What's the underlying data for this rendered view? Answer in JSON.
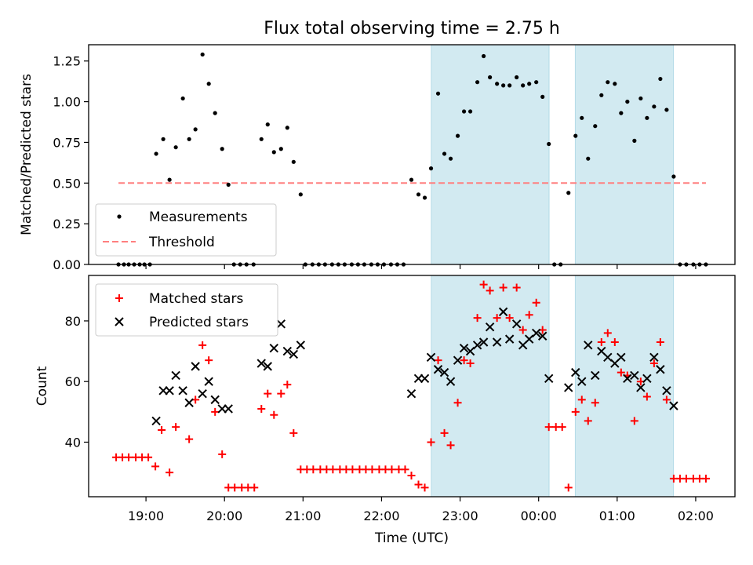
{
  "figure": {
    "title": "Flux total observing time = 2.75 h",
    "xlabel": "Time (UTC)"
  },
  "chart_data": [
    {
      "type": "scatter",
      "panel": "top",
      "ylabel": "Matched/Predicted stars",
      "xlim_hours": [
        18.27,
        26.5
      ],
      "ylim": [
        0,
        1.35
      ],
      "yticks": [
        "0.00",
        "0.25",
        "0.50",
        "0.75",
        "1.00",
        "1.25"
      ],
      "shaded_intervals": [
        [
          "22:38",
          "00:08"
        ],
        [
          "00:28",
          "01:43"
        ]
      ],
      "shade_color": "#add8e6",
      "series": [
        {
          "name": "Measurements",
          "marker": "dot",
          "color": "#000000",
          "points": [
            [
              18.65,
              0
            ],
            [
              18.72,
              0
            ],
            [
              18.78,
              0
            ],
            [
              18.85,
              0
            ],
            [
              18.92,
              0
            ],
            [
              18.98,
              0
            ],
            [
              19.05,
              0
            ],
            [
              19.13,
              0.68
            ],
            [
              19.22,
              0.77
            ],
            [
              19.3,
              0.52
            ],
            [
              19.38,
              0.72
            ],
            [
              19.47,
              1.02
            ],
            [
              19.55,
              0.77
            ],
            [
              19.63,
              0.83
            ],
            [
              19.72,
              1.29
            ],
            [
              19.8,
              1.11
            ],
            [
              19.88,
              0.93
            ],
            [
              19.97,
              0.71
            ],
            [
              20.05,
              0.49
            ],
            [
              20.12,
              0
            ],
            [
              20.2,
              0
            ],
            [
              20.28,
              0
            ],
            [
              20.37,
              0
            ],
            [
              20.47,
              0.77
            ],
            [
              20.55,
              0.86
            ],
            [
              20.63,
              0.69
            ],
            [
              20.72,
              0.71
            ],
            [
              20.8,
              0.84
            ],
            [
              20.88,
              0.63
            ],
            [
              20.97,
              0.43
            ],
            [
              21.03,
              0
            ],
            [
              21.12,
              0
            ],
            [
              21.2,
              0
            ],
            [
              21.28,
              0
            ],
            [
              21.37,
              0
            ],
            [
              21.45,
              0
            ],
            [
              21.53,
              0
            ],
            [
              21.62,
              0
            ],
            [
              21.7,
              0
            ],
            [
              21.78,
              0
            ],
            [
              21.87,
              0
            ],
            [
              21.95,
              0
            ],
            [
              22.03,
              0
            ],
            [
              22.12,
              0
            ],
            [
              22.2,
              0
            ],
            [
              22.28,
              0
            ],
            [
              22.38,
              0.52
            ],
            [
              22.47,
              0.43
            ],
            [
              22.55,
              0.41
            ],
            [
              22.63,
              0.59
            ],
            [
              22.72,
              1.05
            ],
            [
              22.8,
              0.68
            ],
            [
              22.88,
              0.65
            ],
            [
              22.97,
              0.79
            ],
            [
              23.05,
              0.94
            ],
            [
              23.13,
              0.94
            ],
            [
              23.22,
              1.12
            ],
            [
              23.3,
              1.28
            ],
            [
              23.38,
              1.15
            ],
            [
              23.47,
              1.11
            ],
            [
              23.55,
              1.1
            ],
            [
              23.63,
              1.1
            ],
            [
              23.72,
              1.15
            ],
            [
              23.8,
              1.1
            ],
            [
              23.88,
              1.11
            ],
            [
              23.97,
              1.12
            ],
            [
              24.05,
              1.03
            ],
            [
              24.13,
              0.74
            ],
            [
              24.2,
              0
            ],
            [
              24.28,
              0
            ],
            [
              24.38,
              0.44
            ],
            [
              24.47,
              0.79
            ],
            [
              24.55,
              0.9
            ],
            [
              24.63,
              0.65
            ],
            [
              24.72,
              0.85
            ],
            [
              24.8,
              1.04
            ],
            [
              24.88,
              1.12
            ],
            [
              24.97,
              1.11
            ],
            [
              25.05,
              0.93
            ],
            [
              25.13,
              1.0
            ],
            [
              25.22,
              0.76
            ],
            [
              25.3,
              1.02
            ],
            [
              25.38,
              0.9
            ],
            [
              25.47,
              0.97
            ],
            [
              25.55,
              1.14
            ],
            [
              25.63,
              0.95
            ],
            [
              25.72,
              0.54
            ],
            [
              25.8,
              0
            ],
            [
              25.88,
              0
            ],
            [
              25.97,
              0
            ],
            [
              26.05,
              0
            ],
            [
              26.13,
              0
            ]
          ]
        },
        {
          "name": "Threshold",
          "marker": "dashed-line",
          "color": "#ff7f7f",
          "points": [
            [
              18.65,
              0.5
            ],
            [
              26.13,
              0.5
            ]
          ]
        }
      ],
      "legend": "lower-left"
    },
    {
      "type": "scatter",
      "panel": "bottom",
      "ylabel": "Count",
      "xlim_hours": [
        18.27,
        26.5
      ],
      "ylim": [
        22,
        95
      ],
      "yticks": [
        "40",
        "60",
        "80"
      ],
      "xticks": [
        "19:00",
        "20:00",
        "21:00",
        "22:00",
        "23:00",
        "00:00",
        "01:00",
        "02:00"
      ],
      "shaded_intervals": [
        [
          "22:38",
          "00:08"
        ],
        [
          "00:28",
          "01:43"
        ]
      ],
      "series": [
        {
          "name": "Matched stars",
          "marker": "plus",
          "color": "#ff0000",
          "points": [
            [
              18.62,
              35
            ],
            [
              18.7,
              35
            ],
            [
              18.78,
              35
            ],
            [
              18.87,
              35
            ],
            [
              18.95,
              35
            ],
            [
              19.03,
              35
            ],
            [
              19.12,
              32
            ],
            [
              19.2,
              44
            ],
            [
              19.3,
              30
            ],
            [
              19.38,
              45
            ],
            [
              19.55,
              41
            ],
            [
              19.63,
              54
            ],
            [
              19.72,
              72
            ],
            [
              19.8,
              67
            ],
            [
              19.88,
              50
            ],
            [
              19.97,
              36
            ],
            [
              20.05,
              25
            ],
            [
              20.13,
              25
            ],
            [
              20.22,
              25
            ],
            [
              20.3,
              25
            ],
            [
              20.38,
              25
            ],
            [
              20.47,
              51
            ],
            [
              20.55,
              56
            ],
            [
              20.63,
              49
            ],
            [
              20.72,
              56
            ],
            [
              20.8,
              59
            ],
            [
              20.88,
              43
            ],
            [
              20.97,
              31
            ],
            [
              21.05,
              31
            ],
            [
              21.13,
              31
            ],
            [
              21.22,
              31
            ],
            [
              21.3,
              31
            ],
            [
              21.38,
              31
            ],
            [
              21.47,
              31
            ],
            [
              21.55,
              31
            ],
            [
              21.63,
              31
            ],
            [
              21.72,
              31
            ],
            [
              21.8,
              31
            ],
            [
              21.88,
              31
            ],
            [
              21.97,
              31
            ],
            [
              22.05,
              31
            ],
            [
              22.13,
              31
            ],
            [
              22.22,
              31
            ],
            [
              22.3,
              31
            ],
            [
              22.38,
              29
            ],
            [
              22.47,
              26
            ],
            [
              22.55,
              25
            ],
            [
              22.63,
              40
            ],
            [
              22.72,
              67
            ],
            [
              22.8,
              43
            ],
            [
              22.88,
              39
            ],
            [
              22.97,
              53
            ],
            [
              23.05,
              67
            ],
            [
              23.13,
              66
            ],
            [
              23.22,
              81
            ],
            [
              23.3,
              92
            ],
            [
              23.38,
              90
            ],
            [
              23.47,
              81
            ],
            [
              23.55,
              91
            ],
            [
              23.63,
              81
            ],
            [
              23.72,
              91
            ],
            [
              23.8,
              77
            ],
            [
              23.88,
              82
            ],
            [
              23.97,
              86
            ],
            [
              24.05,
              77
            ],
            [
              24.13,
              45
            ],
            [
              24.22,
              45
            ],
            [
              24.3,
              45
            ],
            [
              24.38,
              25
            ],
            [
              24.47,
              50
            ],
            [
              24.55,
              54
            ],
            [
              24.63,
              47
            ],
            [
              24.72,
              53
            ],
            [
              24.8,
              73
            ],
            [
              24.88,
              76
            ],
            [
              24.97,
              73
            ],
            [
              25.05,
              63
            ],
            [
              25.13,
              62
            ],
            [
              25.22,
              47
            ],
            [
              25.3,
              60
            ],
            [
              25.38,
              55
            ],
            [
              25.47,
              66
            ],
            [
              25.55,
              73
            ],
            [
              25.63,
              54
            ],
            [
              25.72,
              28
            ],
            [
              25.8,
              28
            ],
            [
              25.88,
              28
            ],
            [
              25.97,
              28
            ],
            [
              26.05,
              28
            ],
            [
              26.13,
              28
            ]
          ]
        },
        {
          "name": "Predicted stars",
          "marker": "x",
          "color": "#000000",
          "points": [
            [
              19.13,
              47
            ],
            [
              19.22,
              57
            ],
            [
              19.3,
              57
            ],
            [
              19.38,
              62
            ],
            [
              19.47,
              57
            ],
            [
              19.55,
              53
            ],
            [
              19.63,
              65
            ],
            [
              19.72,
              56
            ],
            [
              19.8,
              60
            ],
            [
              19.88,
              54
            ],
            [
              19.97,
              51
            ],
            [
              20.05,
              51
            ],
            [
              20.47,
              66
            ],
            [
              20.55,
              65
            ],
            [
              20.63,
              71
            ],
            [
              20.72,
              79
            ],
            [
              20.8,
              70
            ],
            [
              20.88,
              69
            ],
            [
              20.97,
              72
            ],
            [
              22.38,
              56
            ],
            [
              22.47,
              61
            ],
            [
              22.55,
              61
            ],
            [
              22.63,
              68
            ],
            [
              22.72,
              64
            ],
            [
              22.8,
              63
            ],
            [
              22.88,
              60
            ],
            [
              22.97,
              67
            ],
            [
              23.05,
              71
            ],
            [
              23.13,
              70
            ],
            [
              23.22,
              72
            ],
            [
              23.3,
              73
            ],
            [
              23.38,
              78
            ],
            [
              23.47,
              73
            ],
            [
              23.55,
              83
            ],
            [
              23.63,
              74
            ],
            [
              23.72,
              79
            ],
            [
              23.8,
              72
            ],
            [
              23.88,
              74
            ],
            [
              23.97,
              76
            ],
            [
              24.05,
              75
            ],
            [
              24.13,
              61
            ],
            [
              24.38,
              58
            ],
            [
              24.47,
              63
            ],
            [
              24.55,
              60
            ],
            [
              24.63,
              72
            ],
            [
              24.72,
              62
            ],
            [
              24.8,
              70
            ],
            [
              24.88,
              68
            ],
            [
              24.97,
              66
            ],
            [
              25.05,
              68
            ],
            [
              25.13,
              61
            ],
            [
              25.22,
              62
            ],
            [
              25.3,
              58
            ],
            [
              25.38,
              61
            ],
            [
              25.47,
              68
            ],
            [
              25.55,
              64
            ],
            [
              25.63,
              57
            ],
            [
              25.72,
              52
            ]
          ]
        }
      ],
      "legend": "upper-left"
    }
  ]
}
